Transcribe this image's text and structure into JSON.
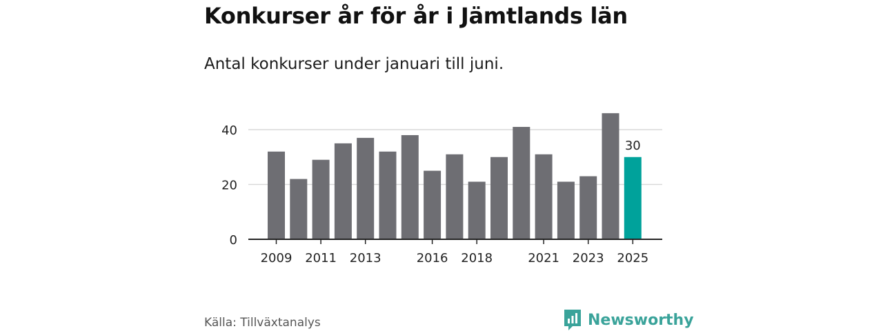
{
  "title": "Konkurser år för år i Jämtlands län",
  "subtitle": "Antal konkurser under januari till juni.",
  "source": "Källa: Tillväxtanalys",
  "brand": {
    "name": "Newsworthy",
    "icon": "bar-chart-logo-icon"
  },
  "colors": {
    "bar": "#6e6e73",
    "highlight": "#00a29b",
    "brand": "#3aa39a",
    "gridline": "#d9d9d9",
    "axis": "#222222"
  },
  "chart_data": {
    "type": "bar",
    "categories": [
      "2009",
      "2010",
      "2011",
      "2012",
      "2013",
      "2014",
      "2015",
      "2016",
      "2017",
      "2018",
      "2019",
      "2020",
      "2021",
      "2022",
      "2023",
      "2024",
      "2025"
    ],
    "values": [
      32,
      22,
      29,
      35,
      37,
      32,
      38,
      25,
      31,
      21,
      30,
      41,
      31,
      21,
      23,
      46,
      30
    ],
    "x_tick_labels": [
      "2009",
      "2011",
      "2013",
      "2016",
      "2018",
      "2021",
      "2023",
      "2025"
    ],
    "y_ticks": [
      0,
      20,
      40
    ],
    "ylim": [
      0,
      50
    ],
    "highlight_category": "2025",
    "data_labels": [
      {
        "category": "2025",
        "text": "30"
      }
    ],
    "grid": true,
    "legend": "none"
  }
}
